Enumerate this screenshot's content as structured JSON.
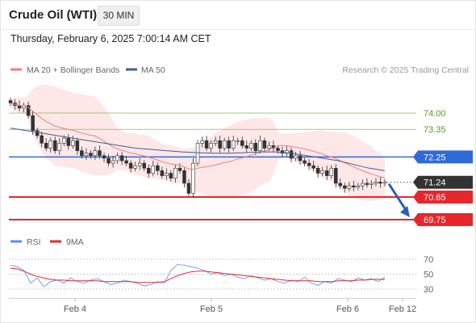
{
  "header": {
    "title": "Crude Oil (WTI)",
    "timeframe": "30 MIN"
  },
  "datetime": "Thursday, February 6, 2025 7:00:14 AM CET",
  "legend": [
    {
      "label": "MA 20 + Bollinger Bands",
      "color": "#f08080"
    },
    {
      "label": "MA 50",
      "color": "#3f5f8f"
    }
  ],
  "copyright": "Research © 2025 Trading Central",
  "rsi_legend": [
    {
      "label": "RSI",
      "color": "#5b8def"
    },
    {
      "label": "9MA",
      "color": "#e8272c"
    }
  ],
  "chart_data": {
    "type": "candlestick",
    "instrument": "Crude Oil (WTI)",
    "interval": "30 MIN",
    "x_ticks": [
      "Feb 4",
      "Feb 5",
      "Feb 6",
      "Feb 12"
    ],
    "price_levels": [
      {
        "value": 74.0,
        "label": "74.00",
        "color": "#8fbf5a",
        "style": "thin"
      },
      {
        "value": 73.35,
        "label": "73.35",
        "color": "#8fbf5a",
        "style": "thin"
      },
      {
        "value": 72.25,
        "label": "72.25",
        "color": "#2f6bd8",
        "style": "solid"
      },
      {
        "value": 71.24,
        "label": "71.24",
        "color": "#333333",
        "style": "dotted",
        "current": true
      },
      {
        "value": 70.65,
        "label": "70.65",
        "color": "#e8272c",
        "style": "thick"
      },
      {
        "value": 69.75,
        "label": "69.75",
        "color": "#e8272c",
        "style": "thick"
      }
    ],
    "close_series_approx": [
      74.4,
      74.3,
      74.2,
      74.3,
      73.9,
      73.3,
      73.1,
      72.8,
      72.6,
      72.9,
      72.5,
      72.8,
      73.0,
      72.7,
      72.9,
      72.5,
      72.3,
      72.4,
      72.3,
      72.5,
      72.3,
      72.2,
      72.0,
      72.1,
      72.3,
      72.1,
      72.0,
      71.8,
      71.9,
      72.0,
      71.8,
      71.6,
      71.9,
      71.7,
      71.5,
      71.6,
      71.4,
      71.8,
      71.7,
      71.2,
      70.8,
      72.0,
      72.8,
      72.9,
      72.6,
      72.8,
      72.9,
      72.6,
      72.9,
      72.6,
      72.9,
      72.9,
      72.7,
      72.6,
      72.8,
      72.5,
      72.9,
      72.6,
      72.7,
      72.6,
      72.5,
      72.4,
      72.5,
      72.2,
      72.3,
      72.1,
      72.0,
      71.9,
      71.8,
      71.6,
      71.7,
      71.5,
      71.8,
      71.2,
      71.1,
      71.0,
      71.1,
      71.05,
      71.1,
      71.2,
      71.15,
      71.2,
      71.25,
      71.2,
      71.24
    ],
    "ma50_approx": [
      73.4,
      73.3,
      73.2,
      73.1,
      73.0,
      72.9,
      72.8,
      72.7,
      72.6,
      72.55,
      72.5,
      72.45,
      72.42,
      72.4,
      72.4,
      72.42,
      72.45,
      72.45,
      72.4,
      72.3,
      72.2,
      72.1,
      71.95,
      71.8,
      71.7
    ],
    "forecast_arrow": {
      "from": 71.24,
      "to": 69.75
    },
    "rsi": {
      "levels": [
        70,
        50,
        30
      ],
      "series": [
        {
          "name": "RSI",
          "values_approx": [
            62,
            60,
            55,
            38,
            45,
            33,
            40,
            42,
            38,
            45,
            40,
            38,
            42,
            44,
            40,
            36,
            38,
            42,
            40,
            38,
            34,
            36,
            40,
            38,
            55,
            63,
            62,
            60,
            58,
            55,
            50,
            52,
            48,
            50,
            46,
            44,
            48,
            45,
            42,
            44,
            40,
            38,
            42,
            40,
            46,
            38,
            35,
            40,
            38,
            44,
            42,
            40,
            45,
            42,
            44,
            40,
            46
          ]
        },
        {
          "name": "9MA",
          "values_approx": [
            58,
            57,
            54,
            50,
            47,
            45,
            43,
            42,
            42,
            41,
            41,
            41,
            41,
            41,
            40,
            40,
            40,
            40,
            40,
            39,
            39,
            39,
            39,
            40,
            44,
            48,
            51,
            53,
            54,
            54,
            53,
            52,
            51,
            50,
            49,
            48,
            47,
            46,
            45,
            44,
            43,
            42,
            41,
            41,
            41,
            41,
            40,
            40,
            40,
            41,
            41,
            41,
            42,
            42,
            43,
            43,
            43
          ]
        }
      ],
      "ylim": [
        20,
        75
      ]
    }
  }
}
